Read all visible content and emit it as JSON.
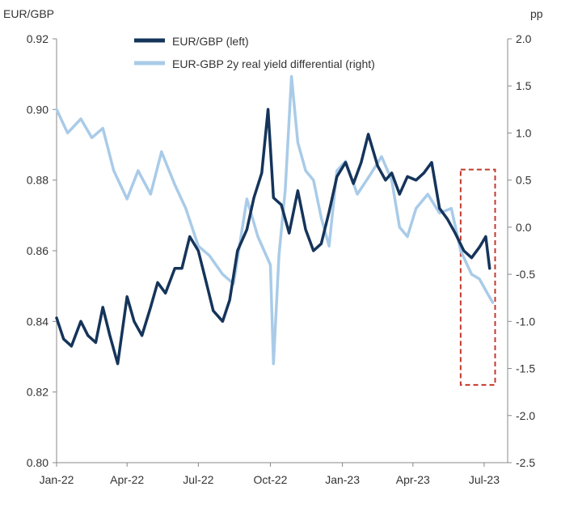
{
  "chart_data": {
    "type": "line",
    "left_axis_label": "EUR/GBP",
    "right_axis_label": "pp",
    "left_ylim": [
      0.8,
      0.92
    ],
    "right_ylim": [
      -2.5,
      2.0
    ],
    "left_ticks": [
      "0.80",
      "0.82",
      "0.84",
      "0.86",
      "0.88",
      "0.90",
      "0.92"
    ],
    "right_ticks": [
      "-2.5",
      "-2.0",
      "-1.5",
      "-1.0",
      "-0.5",
      "0.0",
      "0.5",
      "1.0",
      "1.5",
      "2.0"
    ],
    "x_ticks": [
      "Jan-22",
      "Apr-22",
      "Jul-22",
      "Oct-22",
      "Jan-23",
      "Apr-23",
      "Jul-23"
    ],
    "x_range": [
      "2022-01-01",
      "2023-07-31"
    ],
    "grid": false,
    "legend_placement": "top-center",
    "highlight_box": {
      "from": "2023-06-01",
      "to": "2023-07-15",
      "left_y": [
        0.822,
        0.883
      ],
      "color": "#c0392b",
      "style": "dashed"
    },
    "series": [
      {
        "name": "EUR/GBP (left)",
        "axis": "left",
        "color": "#15345a",
        "points": [
          [
            "2022-01-01",
            0.841
          ],
          [
            "2022-01-10",
            0.835
          ],
          [
            "2022-01-20",
            0.833
          ],
          [
            "2022-02-01",
            0.84
          ],
          [
            "2022-02-10",
            0.836
          ],
          [
            "2022-02-20",
            0.834
          ],
          [
            "2022-03-01",
            0.844
          ],
          [
            "2022-03-10",
            0.836
          ],
          [
            "2022-03-20",
            0.828
          ],
          [
            "2022-04-01",
            0.847
          ],
          [
            "2022-04-10",
            0.84
          ],
          [
            "2022-04-20",
            0.836
          ],
          [
            "2022-05-01",
            0.844
          ],
          [
            "2022-05-10",
            0.851
          ],
          [
            "2022-05-20",
            0.848
          ],
          [
            "2022-06-01",
            0.855
          ],
          [
            "2022-06-10",
            0.855
          ],
          [
            "2022-06-20",
            0.864
          ],
          [
            "2022-07-01",
            0.86
          ],
          [
            "2022-07-10",
            0.852
          ],
          [
            "2022-07-20",
            0.843
          ],
          [
            "2022-08-01",
            0.84
          ],
          [
            "2022-08-10",
            0.846
          ],
          [
            "2022-08-20",
            0.86
          ],
          [
            "2022-09-01",
            0.866
          ],
          [
            "2022-09-10",
            0.875
          ],
          [
            "2022-09-20",
            0.882
          ],
          [
            "2022-09-28",
            0.9
          ],
          [
            "2022-10-05",
            0.875
          ],
          [
            "2022-10-15",
            0.873
          ],
          [
            "2022-10-25",
            0.865
          ],
          [
            "2022-11-05",
            0.877
          ],
          [
            "2022-11-15",
            0.866
          ],
          [
            "2022-11-25",
            0.86
          ],
          [
            "2022-12-05",
            0.862
          ],
          [
            "2022-12-15",
            0.871
          ],
          [
            "2022-12-25",
            0.881
          ],
          [
            "2023-01-05",
            0.885
          ],
          [
            "2023-01-15",
            0.879
          ],
          [
            "2023-01-25",
            0.885
          ],
          [
            "2023-02-03",
            0.893
          ],
          [
            "2023-02-15",
            0.884
          ],
          [
            "2023-02-25",
            0.88
          ],
          [
            "2023-03-05",
            0.882
          ],
          [
            "2023-03-15",
            0.876
          ],
          [
            "2023-03-25",
            0.881
          ],
          [
            "2023-04-05",
            0.88
          ],
          [
            "2023-04-15",
            0.882
          ],
          [
            "2023-04-25",
            0.885
          ],
          [
            "2023-05-05",
            0.872
          ],
          [
            "2023-05-15",
            0.869
          ],
          [
            "2023-05-25",
            0.865
          ],
          [
            "2023-06-05",
            0.86
          ],
          [
            "2023-06-15",
            0.858
          ],
          [
            "2023-06-25",
            0.861
          ],
          [
            "2023-07-03",
            0.864
          ],
          [
            "2023-07-08",
            0.855
          ]
        ]
      },
      {
        "name": "EUR-GBP 2y real yield differential (right)",
        "axis": "right",
        "color": "#a9cbe8",
        "points": [
          [
            "2022-01-01",
            1.25
          ],
          [
            "2022-01-15",
            1.0
          ],
          [
            "2022-02-01",
            1.15
          ],
          [
            "2022-02-15",
            0.95
          ],
          [
            "2022-03-01",
            1.05
          ],
          [
            "2022-03-15",
            0.6
          ],
          [
            "2022-04-01",
            0.3
          ],
          [
            "2022-04-15",
            0.6
          ],
          [
            "2022-05-01",
            0.35
          ],
          [
            "2022-05-15",
            0.8
          ],
          [
            "2022-06-01",
            0.45
          ],
          [
            "2022-06-15",
            0.2
          ],
          [
            "2022-07-01",
            -0.2
          ],
          [
            "2022-07-15",
            -0.3
          ],
          [
            "2022-08-01",
            -0.5
          ],
          [
            "2022-08-15",
            -0.6
          ],
          [
            "2022-09-01",
            0.3
          ],
          [
            "2022-09-15",
            -0.1
          ],
          [
            "2022-10-01",
            -0.4
          ],
          [
            "2022-10-05",
            -1.45
          ],
          [
            "2022-10-12",
            -0.3
          ],
          [
            "2022-10-20",
            0.4
          ],
          [
            "2022-10-28",
            1.6
          ],
          [
            "2022-11-05",
            0.9
          ],
          [
            "2022-11-15",
            0.6
          ],
          [
            "2022-11-25",
            0.5
          ],
          [
            "2022-12-05",
            0.1
          ],
          [
            "2022-12-15",
            -0.2
          ],
          [
            "2022-12-25",
            0.6
          ],
          [
            "2023-01-05",
            0.7
          ],
          [
            "2023-01-20",
            0.35
          ],
          [
            "2023-02-05",
            0.55
          ],
          [
            "2023-02-20",
            0.75
          ],
          [
            "2023-03-05",
            0.5
          ],
          [
            "2023-03-15",
            0.0
          ],
          [
            "2023-03-25",
            -0.1
          ],
          [
            "2023-04-05",
            0.2
          ],
          [
            "2023-04-20",
            0.35
          ],
          [
            "2023-05-05",
            0.15
          ],
          [
            "2023-05-20",
            0.2
          ],
          [
            "2023-06-01",
            -0.25
          ],
          [
            "2023-06-15",
            -0.5
          ],
          [
            "2023-06-25",
            -0.55
          ],
          [
            "2023-07-05",
            -0.7
          ],
          [
            "2023-07-12",
            -0.8
          ]
        ]
      }
    ]
  }
}
